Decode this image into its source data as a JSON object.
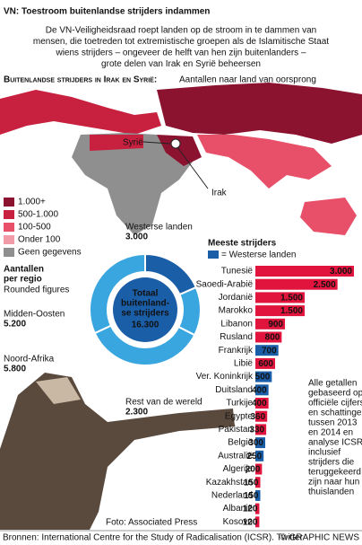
{
  "title": "VN: Toestroom buitenlandse strijders indammen",
  "intro": [
    "De VN-Veiligheidsraad roept landen op de stroom in te dammen van",
    "mensen, die toetreden tot extremistische groepen als de Islamitische Staat",
    "wiens strijders – ongeveer de helft van hen zijn buitenlanders –",
    "grote delen van Irak en Syrië beheersen"
  ],
  "map": {
    "heading": "Buitenlandse strijders in Irak en Syrië:",
    "subheading": "Aantallen naar land van oorsprong",
    "labels": [
      "Syrië",
      "Irak"
    ],
    "legend": [
      {
        "label": "1.000+",
        "color": "#8c1330"
      },
      {
        "label": "500-1.000",
        "color": "#c8203f"
      },
      {
        "label": "100-500",
        "color": "#e8506a"
      },
      {
        "label": "Onder 100",
        "color": "#f19aa8"
      },
      {
        "label": "Geen gegevens",
        "color": "#8f8f8f"
      }
    ]
  },
  "chart_data": [
    {
      "type": "donut",
      "title": "Aantallen",
      "subtitle": "per regio",
      "note": "Rounded figures",
      "center_label": [
        "Totaal",
        "buitenland-",
        "se strijders"
      ],
      "center_value": 16300,
      "center_value_label": "16.300",
      "categories": [
        "Westerse landen",
        "Rest van de wereld",
        "Noord-Afrika",
        "Midden-Oosten"
      ],
      "values": [
        3000,
        2300,
        5800,
        5200
      ],
      "value_labels": [
        "3.000",
        "2.300",
        "5.800",
        "5.200"
      ],
      "colors": [
        "#1a5ea8",
        "#3aa6e0",
        "#3aa6e0",
        "#3aa6e0"
      ]
    },
    {
      "type": "hbar",
      "title": "Meeste strijders",
      "legend": {
        "label": "= Westerse landen",
        "color": "#1a5ea8"
      },
      "categories": [
        "Tunesië",
        "Saoedi-Arabië",
        "Jordanië",
        "Marokko",
        "Libanon",
        "Rusland",
        "Frankrijk",
        "Libië",
        "Ver. Koninkrijk",
        "Duitsland",
        "Turkije",
        "Egypte",
        "Pakistan",
        "België",
        "Australië",
        "Algerije",
        "Kazakhstan",
        "Nederland",
        "Albanië",
        "Kosovo"
      ],
      "values": [
        3000,
        2500,
        1500,
        1500,
        900,
        800,
        700,
        600,
        500,
        400,
        400,
        360,
        330,
        300,
        250,
        200,
        150,
        150,
        120,
        120
      ],
      "value_labels": [
        "3.000",
        "2.500",
        "1.500",
        "1.500",
        "900",
        "800",
        "700",
        "600",
        "500",
        "400",
        "400",
        "360",
        "330",
        "300",
        "250",
        "200",
        "150",
        "150",
        "120",
        "120"
      ],
      "colors": [
        "#e0143c",
        "#e0143c",
        "#e0143c",
        "#e0143c",
        "#e0143c",
        "#e0143c",
        "#1a5ea8",
        "#e0143c",
        "#1a5ea8",
        "#1a5ea8",
        "#e0143c",
        "#e0143c",
        "#e0143c",
        "#1a5ea8",
        "#1a5ea8",
        "#e0143c",
        "#e0143c",
        "#1a5ea8",
        "#e0143c",
        "#e0143c"
      ]
    }
  ],
  "note": [
    "Alle getallen",
    "gebaseerd op",
    "officiële cijfers",
    "en schattingen",
    "tussen 2013",
    "en 2014 en",
    "analyse ICSR,",
    "inclusief",
    "strijders die",
    "teruggekeerd",
    "zijn naar hun",
    "thuislanden"
  ],
  "photo": "Foto: Associated Press",
  "source": "Bronnen: International Centre for the Study of Radicalisation (ICSR). Twitter",
  "credit": "© GRAPHIC NEWS"
}
